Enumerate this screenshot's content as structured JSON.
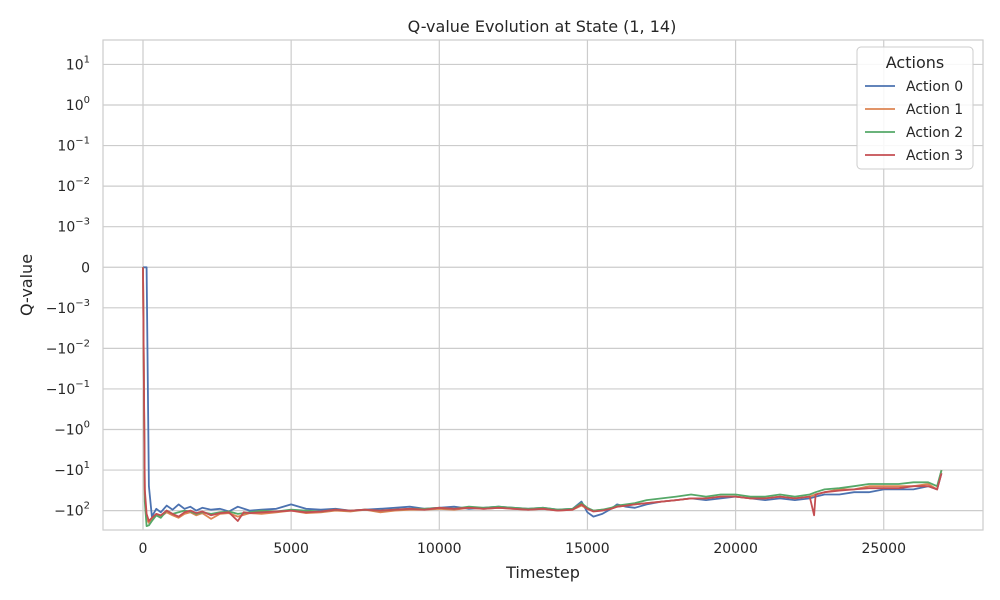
{
  "chart_data": {
    "type": "line",
    "title": "Q-value Evolution at State (1, 14)",
    "xlabel": "Timestep",
    "ylabel": "Q-value",
    "xlim": [
      -1350,
      28350
    ],
    "x_ticks": [
      0,
      5000,
      10000,
      15000,
      20000,
      25000
    ],
    "x_tick_labels": [
      "0",
      "5000",
      "10000",
      "15000",
      "20000",
      "25000"
    ],
    "y_scale": "symlog",
    "y_linthresh": 0.001,
    "ylim": [
      -300,
      40
    ],
    "y_ticks": [
      {
        "value": 10,
        "base": "10",
        "exp": "1",
        "sign": ""
      },
      {
        "value": 1,
        "base": "10",
        "exp": "0",
        "sign": ""
      },
      {
        "value": 0.1,
        "base": "10",
        "exp": "−1",
        "sign": ""
      },
      {
        "value": 0.01,
        "base": "10",
        "exp": "−2",
        "sign": ""
      },
      {
        "value": 0.001,
        "base": "10",
        "exp": "−3",
        "sign": ""
      },
      {
        "value": 0,
        "base": "0",
        "exp": "",
        "sign": ""
      },
      {
        "value": -0.001,
        "base": "10",
        "exp": "−3",
        "sign": "−"
      },
      {
        "value": -0.01,
        "base": "10",
        "exp": "−2",
        "sign": "−"
      },
      {
        "value": -0.1,
        "base": "10",
        "exp": "−1",
        "sign": "−"
      },
      {
        "value": -1,
        "base": "10",
        "exp": "0",
        "sign": "−"
      },
      {
        "value": -10,
        "base": "10",
        "exp": "1",
        "sign": "−"
      },
      {
        "value": -100,
        "base": "10",
        "exp": "2",
        "sign": "−"
      }
    ],
    "grid": true,
    "legend": {
      "title": "Actions",
      "placement": "top-right"
    },
    "series": [
      {
        "name": "Action 0",
        "color": "#4c72b0",
        "x": [
          0,
          60,
          120,
          200,
          300,
          450,
          600,
          800,
          1000,
          1200,
          1400,
          1600,
          1800,
          2000,
          2300,
          2600,
          2900,
          3200,
          3600,
          4000,
          4500,
          5000,
          5500,
          6000,
          6500,
          7000,
          7500,
          8000,
          8500,
          9000,
          9500,
          10000,
          10500,
          11000,
          11500,
          12000,
          12500,
          13000,
          13500,
          14000,
          14500,
          14800,
          15000,
          15200,
          15500,
          15800,
          16000,
          16300,
          16600,
          17000,
          17500,
          18000,
          18500,
          19000,
          19500,
          20000,
          20500,
          21000,
          21500,
          22000,
          22500,
          22700,
          23000,
          23500,
          24000,
          24500,
          25000,
          25500,
          26000,
          26500,
          26800,
          26950
        ],
        "y": [
          0,
          0,
          0,
          -25,
          -140,
          -90,
          -110,
          -75,
          -95,
          -70,
          -90,
          -80,
          -100,
          -85,
          -95,
          -90,
          -105,
          -80,
          -100,
          -95,
          -90,
          -70,
          -90,
          -95,
          -90,
          -100,
          -95,
          -90,
          -85,
          -80,
          -90,
          -85,
          -80,
          -90,
          -85,
          -80,
          -85,
          -90,
          -85,
          -95,
          -90,
          -60,
          -110,
          -140,
          -120,
          -90,
          -70,
          -80,
          -85,
          -70,
          -60,
          -55,
          -50,
          -55,
          -50,
          -45,
          -50,
          -55,
          -50,
          -55,
          -50,
          -45,
          -40,
          -40,
          -35,
          -35,
          -30,
          -30,
          -30,
          -25,
          -30,
          -12
        ]
      },
      {
        "name": "Action 1",
        "color": "#dd8452",
        "x": [
          0,
          60,
          120,
          200,
          300,
          450,
          600,
          800,
          1000,
          1200,
          1400,
          1600,
          1800,
          2000,
          2300,
          2600,
          2900,
          3200,
          3600,
          4000,
          4500,
          5000,
          5500,
          6000,
          6500,
          7000,
          7500,
          8000,
          8500,
          9000,
          9500,
          10000,
          10500,
          11000,
          11500,
          12000,
          12500,
          13000,
          13500,
          14000,
          14500,
          14800,
          15000,
          15200,
          15500,
          15800,
          16000,
          16300,
          16600,
          17000,
          17500,
          18000,
          18500,
          19000,
          19500,
          20000,
          20500,
          21000,
          21500,
          22000,
          22500,
          22700,
          23000,
          23500,
          24000,
          24500,
          25000,
          25500,
          26000,
          26500,
          26800,
          26950
        ],
        "y": [
          0,
          -40,
          -160,
          -200,
          -170,
          -120,
          -140,
          -110,
          -130,
          -150,
          -120,
          -110,
          -130,
          -115,
          -160,
          -120,
          -115,
          -140,
          -115,
          -120,
          -110,
          -100,
          -115,
          -110,
          -100,
          -105,
          -95,
          -110,
          -100,
          -95,
          -95,
          -90,
          -95,
          -85,
          -90,
          -85,
          -90,
          -95,
          -90,
          -100,
          -95,
          -75,
          -90,
          -100,
          -95,
          -90,
          -80,
          -75,
          -70,
          -65,
          -60,
          -55,
          -50,
          -50,
          -45,
          -45,
          -50,
          -50,
          -45,
          -50,
          -45,
          -40,
          -35,
          -30,
          -30,
          -25,
          -25,
          -25,
          -25,
          -22,
          -30,
          -10
        ]
      },
      {
        "name": "Action 2",
        "color": "#55a868",
        "x": [
          0,
          60,
          120,
          200,
          300,
          450,
          600,
          800,
          1000,
          1200,
          1400,
          1600,
          1800,
          2000,
          2300,
          2600,
          2900,
          3200,
          3600,
          4000,
          4500,
          5000,
          5500,
          6000,
          6500,
          7000,
          7500,
          8000,
          8500,
          9000,
          9500,
          10000,
          10500,
          11000,
          11500,
          12000,
          12500,
          13000,
          13500,
          14000,
          14500,
          14800,
          15000,
          15200,
          15500,
          15800,
          16000,
          16300,
          16600,
          17000,
          17500,
          18000,
          18500,
          19000,
          19500,
          20000,
          20500,
          21000,
          21500,
          22000,
          22500,
          22700,
          23000,
          23500,
          24000,
          24500,
          25000,
          25500,
          26000,
          26500,
          26800,
          26950
        ],
        "y": [
          0,
          -60,
          -240,
          -230,
          -180,
          -130,
          -150,
          -100,
          -120,
          -110,
          -100,
          -105,
          -120,
          -110,
          -120,
          -110,
          -105,
          -120,
          -110,
          -100,
          -105,
          -95,
          -100,
          -105,
          -95,
          -100,
          -95,
          -100,
          -95,
          -90,
          -90,
          -85,
          -90,
          -80,
          -85,
          -80,
          -85,
          -90,
          -85,
          -95,
          -90,
          -65,
          -85,
          -100,
          -95,
          -85,
          -75,
          -70,
          -65,
          -55,
          -50,
          -45,
          -40,
          -45,
          -40,
          -40,
          -45,
          -45,
          -40,
          -45,
          -40,
          -35,
          -30,
          -28,
          -25,
          -22,
          -22,
          -22,
          -20,
          -20,
          -25,
          -10
        ]
      },
      {
        "name": "Action 3",
        "color": "#c44e52",
        "x": [
          0,
          60,
          120,
          200,
          300,
          450,
          600,
          800,
          1000,
          1200,
          1400,
          1600,
          1800,
          2000,
          2300,
          2600,
          2900,
          3200,
          3400,
          3600,
          4000,
          4500,
          5000,
          5500,
          6000,
          6500,
          7000,
          7500,
          8000,
          8500,
          9000,
          9500,
          10000,
          10500,
          11000,
          11500,
          12000,
          12500,
          13000,
          13500,
          14000,
          14500,
          14800,
          15000,
          15200,
          15500,
          15800,
          16000,
          16300,
          16600,
          17000,
          17500,
          18000,
          18500,
          19000,
          19500,
          20000,
          20500,
          21000,
          21500,
          22000,
          22500,
          22650,
          22700,
          23000,
          23500,
          24000,
          24500,
          25000,
          25500,
          26000,
          26500,
          26800,
          26950
        ],
        "y": [
          0,
          -30,
          -120,
          -180,
          -150,
          -120,
          -130,
          -100,
          -120,
          -140,
          -110,
          -100,
          -115,
          -105,
          -130,
          -115,
          -110,
          -180,
          -110,
          -115,
          -110,
          -105,
          -100,
          -110,
          -105,
          -95,
          -100,
          -95,
          -100,
          -95,
          -90,
          -95,
          -85,
          -90,
          -85,
          -90,
          -85,
          -90,
          -95,
          -90,
          -100,
          -95,
          -70,
          -90,
          -105,
          -100,
          -90,
          -80,
          -75,
          -70,
          -65,
          -60,
          -55,
          -50,
          -50,
          -45,
          -45,
          -50,
          -50,
          -45,
          -50,
          -45,
          -130,
          -40,
          -35,
          -32,
          -30,
          -28,
          -28,
          -28,
          -25,
          -25,
          -30,
          -12
        ]
      }
    ]
  }
}
